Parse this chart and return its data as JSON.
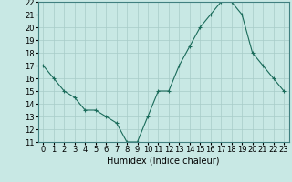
{
  "x": [
    0,
    1,
    2,
    3,
    4,
    5,
    6,
    7,
    8,
    9,
    10,
    11,
    12,
    13,
    14,
    15,
    16,
    17,
    18,
    19,
    20,
    21,
    22,
    23
  ],
  "y": [
    17,
    16,
    15,
    14.5,
    13.5,
    13.5,
    13,
    12.5,
    11,
    11,
    13,
    15,
    15,
    17,
    18.5,
    20,
    21,
    22,
    22,
    21,
    18,
    17,
    16,
    15
  ],
  "xlabel": "Humidex (Indice chaleur)",
  "xlim": [
    -0.5,
    23.5
  ],
  "ylim": [
    11,
    22
  ],
  "yticks": [
    11,
    12,
    13,
    14,
    15,
    16,
    17,
    18,
    19,
    20,
    21,
    22
  ],
  "xticks": [
    0,
    1,
    2,
    3,
    4,
    5,
    6,
    7,
    8,
    9,
    10,
    11,
    12,
    13,
    14,
    15,
    16,
    17,
    18,
    19,
    20,
    21,
    22,
    23
  ],
  "line_color": "#1a6b5a",
  "marker": "+",
  "bg_color": "#c8e8e4",
  "grid_color": "#a8ccc8",
  "label_fontsize": 7,
  "tick_fontsize": 6
}
